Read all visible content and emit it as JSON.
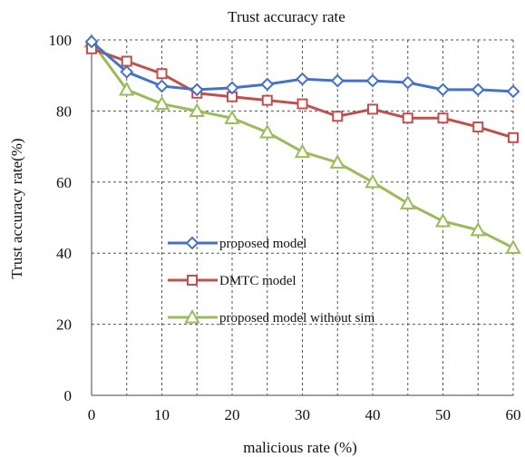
{
  "chart_data": {
    "type": "line",
    "title": "Trust accuracy rate",
    "xlabel": "malicious rate (%)",
    "ylabel": "Trust accuracy rate(%)",
    "x": [
      0,
      5,
      10,
      15,
      20,
      25,
      30,
      35,
      40,
      45,
      50,
      55,
      60
    ],
    "xlim": [
      0,
      60
    ],
    "ylim": [
      0,
      100
    ],
    "xticks": [
      0,
      10,
      20,
      30,
      40,
      50,
      60
    ],
    "yticks": [
      0,
      20,
      40,
      60,
      80,
      100
    ],
    "grid": "dashed",
    "legend_position": "center-left",
    "series": [
      {
        "name": "proposed model",
        "color": "#4472c4",
        "marker": "diamond",
        "values": [
          99.5,
          91,
          87,
          86,
          86.5,
          87.5,
          89,
          88.5,
          88.5,
          88,
          86,
          86,
          85.5
        ]
      },
      {
        "name": "DMTC model",
        "color": "#c0504d",
        "marker": "square",
        "values": [
          97.5,
          94,
          90.5,
          85,
          84,
          83,
          82,
          78.5,
          80.5,
          78,
          78,
          75.5,
          72.5
        ]
      },
      {
        "name": "proposed model without sim",
        "color": "#9bbb59",
        "marker": "triangle",
        "values": [
          99.5,
          86,
          82,
          80,
          78,
          74,
          68.5,
          65.5,
          60,
          54,
          49,
          46.5,
          41.5
        ]
      }
    ]
  }
}
